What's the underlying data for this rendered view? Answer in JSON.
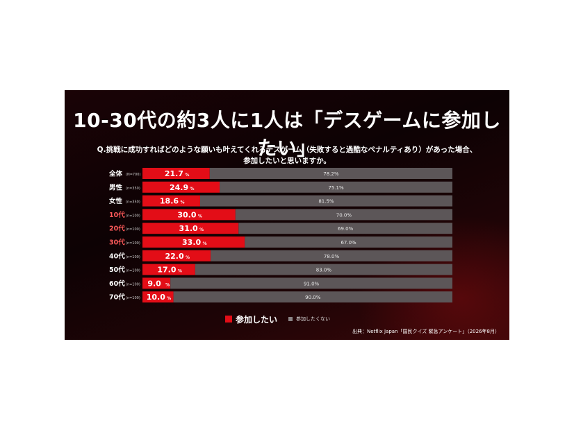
{
  "page": {
    "title": "10-30代の約3人に1人は「デスゲームに参加したい」",
    "question_line1": "Q.挑戦に成功すればどのような願いも叶えてくれるデスゲーム（失敗すると過酷なペナルティあり）があった場合、",
    "question_line2": "参加したいと思いますか。",
    "source": "出典：Netflix Japan「国民クイズ 緊急アンケート」（2026年8月）"
  },
  "legend": {
    "series1": "参加したい",
    "series2": "参加したくない"
  },
  "colors": {
    "participate": "#e30d17",
    "not_participate": "#5c5658",
    "highlight_label": "#ff5a5a",
    "background": "#0d0204"
  },
  "chart_data": {
    "type": "bar",
    "orientation": "horizontal",
    "stacked": true,
    "percent_suffix": "%",
    "xlim": [
      0,
      100
    ],
    "categories": [
      "全体",
      "男性",
      "女性",
      "10代",
      "20代",
      "30代",
      "40代",
      "50代",
      "60代",
      "70代"
    ],
    "sample_sizes": [
      "(N=700)",
      "(n=350)",
      "(n=350)",
      "(n=100)",
      "(n=100)",
      "(n=100)",
      "(n=100)",
      "(n=100)",
      "(n=100)",
      "(n=100)"
    ],
    "highlighted": [
      false,
      false,
      false,
      true,
      true,
      true,
      false,
      false,
      false,
      false
    ],
    "series": [
      {
        "name": "参加したい",
        "values": [
          21.7,
          24.9,
          18.6,
          30.0,
          31.0,
          33.0,
          22.0,
          17.0,
          9.0,
          10.0
        ]
      },
      {
        "name": "参加したくない",
        "values": [
          78.2,
          75.1,
          81.5,
          70.0,
          69.0,
          67.0,
          78.0,
          83.0,
          91.0,
          90.0
        ]
      }
    ],
    "legend_position": "bottom",
    "grid": false
  }
}
